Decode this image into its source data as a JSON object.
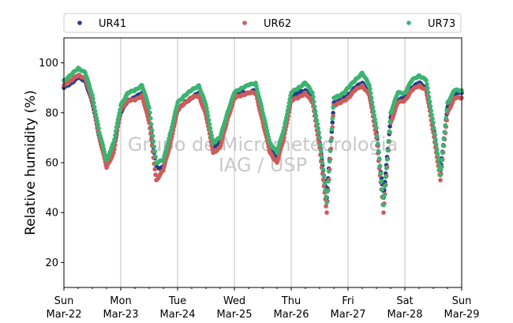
{
  "chart_data": {
    "type": "scatter",
    "ylabel": "Relative humidity (%)",
    "ylim": [
      10,
      110
    ],
    "yticks": [
      20,
      40,
      60,
      80,
      100
    ],
    "xlim": [
      "2020-03-22T00:00",
      "2020-03-29T00:00"
    ],
    "xticks": [
      {
        "date": "2020-03-22",
        "day": "Sun",
        "label": "Mar-22"
      },
      {
        "date": "2020-03-23",
        "day": "Mon",
        "label": "Mar-23"
      },
      {
        "date": "2020-03-24",
        "day": "Tue",
        "label": "Mar-24"
      },
      {
        "date": "2020-03-25",
        "day": "Wed",
        "label": "Mar-25"
      },
      {
        "date": "2020-03-26",
        "day": "Thu",
        "label": "Mar-26"
      },
      {
        "date": "2020-03-27",
        "day": "Fri",
        "label": "Mar-27"
      },
      {
        "date": "2020-03-28",
        "day": "Sat",
        "label": "Mar-28"
      },
      {
        "date": "2020-03-29",
        "day": "Sun",
        "label": "Mar-29"
      }
    ],
    "vertical_grid": true,
    "legend_position": "top, above plot",
    "watermark": [
      "Grupo de Micrometeorologia",
      "IAG / USP"
    ],
    "series": [
      {
        "name": "UR41",
        "color": "#1f3f8a",
        "x": [
          "2020-03-22T00:00",
          "2020-03-22T03:00",
          "2020-03-22T06:00",
          "2020-03-22T09:00",
          "2020-03-22T12:00",
          "2020-03-22T15:00",
          "2020-03-22T18:00",
          "2020-03-22T21:00",
          "2020-03-23T00:00",
          "2020-03-23T03:00",
          "2020-03-23T06:00",
          "2020-03-23T09:00",
          "2020-03-23T12:00",
          "2020-03-23T15:00",
          "2020-03-23T18:00",
          "2020-03-23T21:00",
          "2020-03-24T00:00",
          "2020-03-24T03:00",
          "2020-03-24T06:00",
          "2020-03-24T09:00",
          "2020-03-24T12:00",
          "2020-03-24T15:00",
          "2020-03-24T18:00",
          "2020-03-24T21:00",
          "2020-03-25T00:00",
          "2020-03-25T03:00",
          "2020-03-25T06:00",
          "2020-03-25T09:00",
          "2020-03-25T12:00",
          "2020-03-25T15:00",
          "2020-03-25T18:00",
          "2020-03-25T21:00",
          "2020-03-26T00:00",
          "2020-03-26T03:00",
          "2020-03-26T06:00",
          "2020-03-26T09:00",
          "2020-03-26T12:00",
          "2020-03-26T15:00",
          "2020-03-26T18:00",
          "2020-03-26T21:00",
          "2020-03-27T00:00",
          "2020-03-27T03:00",
          "2020-03-27T06:00",
          "2020-03-27T09:00",
          "2020-03-27T12:00",
          "2020-03-27T15:00",
          "2020-03-27T18:00",
          "2020-03-27T21:00",
          "2020-03-28T00:00",
          "2020-03-28T03:00",
          "2020-03-28T06:00",
          "2020-03-28T09:00",
          "2020-03-28T12:00",
          "2020-03-28T15:00",
          "2020-03-28T18:00",
          "2020-03-28T21:00",
          "2020-03-29T00:00"
        ],
        "y": [
          90,
          92,
          94,
          93,
          84,
          70,
          60,
          66,
          80,
          85,
          86,
          88,
          78,
          58,
          58,
          70,
          81,
          84,
          86,
          88,
          80,
          66,
          68,
          78,
          86,
          88,
          88,
          89,
          78,
          66,
          62,
          72,
          86,
          88,
          89,
          86,
          68,
          46,
          84,
          85,
          87,
          90,
          92,
          88,
          72,
          46,
          78,
          85,
          86,
          90,
          92,
          90,
          74,
          57,
          82,
          88,
          88
        ]
      },
      {
        "name": "UR62",
        "color": "#cd5c5c",
        "x": [
          "2020-03-22T00:00",
          "2020-03-22T03:00",
          "2020-03-22T06:00",
          "2020-03-22T09:00",
          "2020-03-22T12:00",
          "2020-03-22T15:00",
          "2020-03-22T18:00",
          "2020-03-22T21:00",
          "2020-03-23T00:00",
          "2020-03-23T03:00",
          "2020-03-23T06:00",
          "2020-03-23T09:00",
          "2020-03-23T12:00",
          "2020-03-23T15:00",
          "2020-03-23T18:00",
          "2020-03-23T21:00",
          "2020-03-24T00:00",
          "2020-03-24T03:00",
          "2020-03-24T06:00",
          "2020-03-24T09:00",
          "2020-03-24T12:00",
          "2020-03-24T15:00",
          "2020-03-24T18:00",
          "2020-03-24T21:00",
          "2020-03-25T00:00",
          "2020-03-25T03:00",
          "2020-03-25T06:00",
          "2020-03-25T09:00",
          "2020-03-25T12:00",
          "2020-03-25T15:00",
          "2020-03-25T18:00",
          "2020-03-25T21:00",
          "2020-03-26T00:00",
          "2020-03-26T03:00",
          "2020-03-26T06:00",
          "2020-03-26T09:00",
          "2020-03-26T12:00",
          "2020-03-26T15:00",
          "2020-03-26T18:00",
          "2020-03-26T21:00",
          "2020-03-27T00:00",
          "2020-03-27T03:00",
          "2020-03-27T06:00",
          "2020-03-27T09:00",
          "2020-03-27T12:00",
          "2020-03-27T15:00",
          "2020-03-27T18:00",
          "2020-03-27T21:00",
          "2020-03-28T00:00",
          "2020-03-28T03:00",
          "2020-03-28T06:00",
          "2020-03-28T09:00",
          "2020-03-28T12:00",
          "2020-03-28T15:00",
          "2020-03-28T18:00",
          "2020-03-28T21:00",
          "2020-03-29T00:00"
        ],
        "y": [
          91,
          93,
          95,
          94,
          85,
          70,
          58,
          64,
          81,
          85,
          85,
          87,
          76,
          53,
          57,
          68,
          81,
          84,
          86,
          87,
          79,
          64,
          66,
          77,
          86,
          87,
          88,
          88,
          76,
          64,
          60,
          70,
          85,
          86,
          88,
          84,
          66,
          40,
          83,
          84,
          86,
          89,
          91,
          87,
          70,
          40,
          76,
          84,
          85,
          89,
          91,
          89,
          72,
          53,
          80,
          86,
          86
        ]
      },
      {
        "name": "UR73",
        "color": "#3cb371",
        "x": [
          "2020-03-22T00:00",
          "2020-03-22T03:00",
          "2020-03-22T06:00",
          "2020-03-22T09:00",
          "2020-03-22T12:00",
          "2020-03-22T15:00",
          "2020-03-22T18:00",
          "2020-03-22T21:00",
          "2020-03-23T00:00",
          "2020-03-23T03:00",
          "2020-03-23T06:00",
          "2020-03-23T09:00",
          "2020-03-23T12:00",
          "2020-03-23T15:00",
          "2020-03-23T18:00",
          "2020-03-23T21:00",
          "2020-03-24T00:00",
          "2020-03-24T03:00",
          "2020-03-24T06:00",
          "2020-03-24T09:00",
          "2020-03-24T12:00",
          "2020-03-24T15:00",
          "2020-03-24T18:00",
          "2020-03-24T21:00",
          "2020-03-25T00:00",
          "2020-03-25T03:00",
          "2020-03-25T06:00",
          "2020-03-25T09:00",
          "2020-03-25T12:00",
          "2020-03-25T15:00",
          "2020-03-25T18:00",
          "2020-03-25T21:00",
          "2020-03-26T00:00",
          "2020-03-26T03:00",
          "2020-03-26T06:00",
          "2020-03-26T09:00",
          "2020-03-26T12:00",
          "2020-03-26T15:00",
          "2020-03-26T18:00",
          "2020-03-26T21:00",
          "2020-03-27T00:00",
          "2020-03-27T03:00",
          "2020-03-27T06:00",
          "2020-03-27T09:00",
          "2020-03-27T12:00",
          "2020-03-27T15:00",
          "2020-03-27T18:00",
          "2020-03-27T21:00",
          "2020-03-28T00:00",
          "2020-03-28T03:00",
          "2020-03-28T06:00",
          "2020-03-28T09:00",
          "2020-03-28T12:00",
          "2020-03-28T15:00",
          "2020-03-28T18:00",
          "2020-03-28T21:00",
          "2020-03-29T00:00"
        ],
        "y": [
          93,
          95,
          98,
          96,
          87,
          72,
          61,
          68,
          83,
          88,
          89,
          91,
          82,
          60,
          61,
          72,
          84,
          87,
          89,
          91,
          83,
          68,
          70,
          80,
          88,
          90,
          91,
          92,
          80,
          68,
          64,
          74,
          88,
          90,
          92,
          88,
          70,
          44,
          86,
          87,
          90,
          93,
          96,
          91,
          74,
          43,
          80,
          88,
          88,
          93,
          95,
          93,
          76,
          55,
          84,
          89,
          89
        ]
      }
    ]
  }
}
